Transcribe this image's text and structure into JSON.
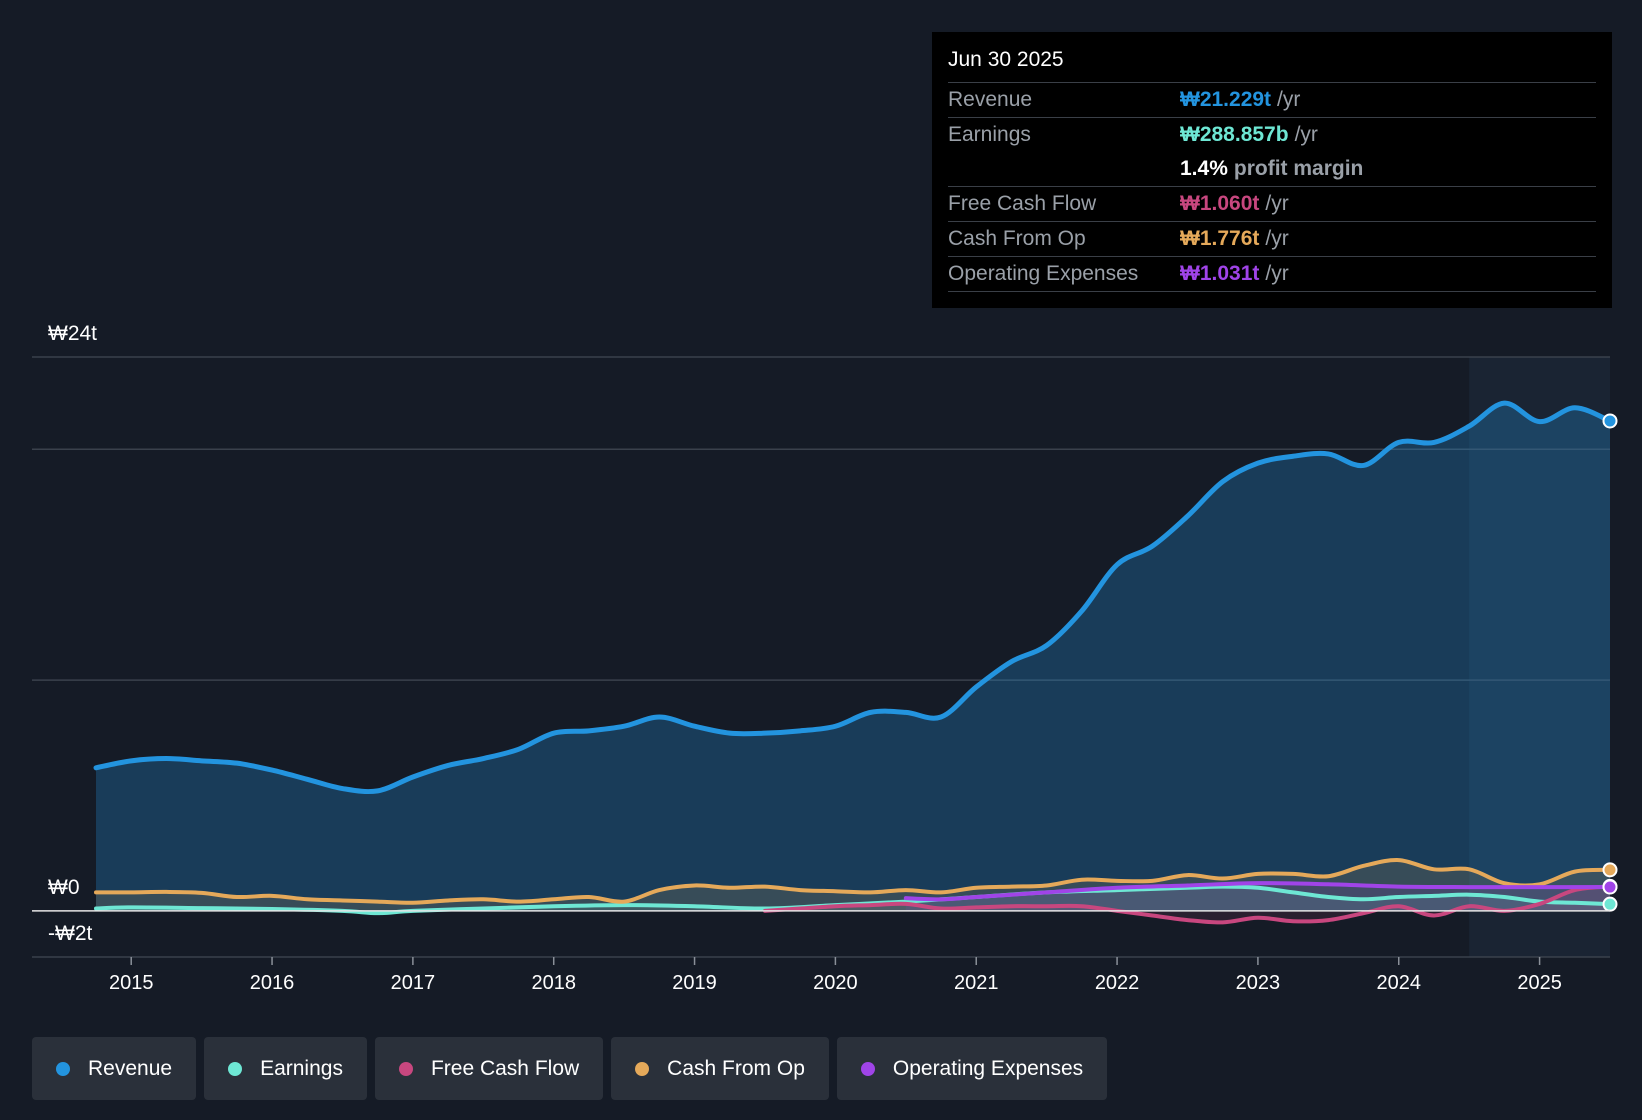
{
  "tooltip": {
    "date": "Jun 30 2025",
    "rows": [
      {
        "label": "Revenue",
        "value": "₩21.229t",
        "unit": "/yr",
        "color": "#2394df"
      },
      {
        "label": "Earnings",
        "value": "₩288.857b",
        "unit": "/yr",
        "color": "#6ee7d4"
      },
      {
        "label": "",
        "value": "1.4%",
        "unit": "profit margin",
        "color": "#ffffff"
      },
      {
        "label": "Free Cash Flow",
        "value": "₩1.060t",
        "unit": "/yr",
        "color": "#c8477f"
      },
      {
        "label": "Cash From Op",
        "value": "₩1.776t",
        "unit": "/yr",
        "color": "#e5a95a"
      },
      {
        "label": "Operating Expenses",
        "value": "₩1.031t",
        "unit": "/yr",
        "color": "#a044e8"
      }
    ]
  },
  "legend": [
    {
      "label": "Revenue",
      "color": "#2394df"
    },
    {
      "label": "Earnings",
      "color": "#6ee7d4"
    },
    {
      "label": "Free Cash Flow",
      "color": "#c8477f"
    },
    {
      "label": "Cash From Op",
      "color": "#e5a95a"
    },
    {
      "label": "Operating Expenses",
      "color": "#a044e8"
    }
  ],
  "chart_data": {
    "type": "line",
    "title": "",
    "ylabel_top": "₩24t",
    "ylabel_zero": "₩0",
    "ylabel_bottom": "-₩2t",
    "ylim": [
      -2,
      24
    ],
    "xlim": [
      2014.75,
      2025.5
    ],
    "gridlines": [
      24,
      20,
      10,
      0
    ],
    "xticks": [
      2015,
      2016,
      2017,
      2018,
      2019,
      2020,
      2021,
      2022,
      2023,
      2024,
      2025
    ],
    "xtick_labels": [
      "2015",
      "2016",
      "2017",
      "2018",
      "2019",
      "2020",
      "2021",
      "2022",
      "2023",
      "2024",
      "2025"
    ],
    "highlight_start": 2024.5,
    "series": [
      {
        "name": "Revenue",
        "color": "#2394df",
        "x": [
          2014.75,
          2015.0,
          2015.25,
          2015.5,
          2015.75,
          2016.0,
          2016.25,
          2016.5,
          2016.75,
          2017.0,
          2017.25,
          2017.5,
          2017.75,
          2018.0,
          2018.25,
          2018.5,
          2018.75,
          2019.0,
          2019.25,
          2019.5,
          2019.75,
          2020.0,
          2020.25,
          2020.5,
          2020.75,
          2021.0,
          2021.25,
          2021.5,
          2021.75,
          2022.0,
          2022.25,
          2022.5,
          2022.75,
          2023.0,
          2023.25,
          2023.5,
          2023.75,
          2024.0,
          2024.25,
          2024.5,
          2024.75,
          2025.0,
          2025.25,
          2025.5
        ],
        "values": [
          6.2,
          6.5,
          6.6,
          6.5,
          6.4,
          6.1,
          5.7,
          5.3,
          5.2,
          5.8,
          6.3,
          6.6,
          7.0,
          7.7,
          7.8,
          8.0,
          8.4,
          8.0,
          7.7,
          7.7,
          7.8,
          8.0,
          8.6,
          8.6,
          8.4,
          9.7,
          10.8,
          11.5,
          13.0,
          15.0,
          15.8,
          17.1,
          18.6,
          19.4,
          19.7,
          19.8,
          19.3,
          20.3,
          20.3,
          21.0,
          22.0,
          21.2,
          21.8,
          21.229
        ]
      },
      {
        "name": "Earnings",
        "color": "#6ee7d4",
        "x": [
          2014.75,
          2015.0,
          2015.5,
          2016.0,
          2016.5,
          2016.75,
          2017.0,
          2017.5,
          2018.0,
          2018.5,
          2019.0,
          2019.5,
          2020.0,
          2020.5,
          2021.0,
          2021.5,
          2022.0,
          2022.5,
          2022.75,
          2023.0,
          2023.25,
          2023.5,
          2023.75,
          2024.0,
          2024.25,
          2024.5,
          2024.75,
          2025.0,
          2025.25,
          2025.5
        ],
        "values": [
          0.1,
          0.15,
          0.12,
          0.08,
          0.0,
          -0.1,
          0.0,
          0.1,
          0.2,
          0.25,
          0.2,
          0.1,
          0.25,
          0.4,
          0.6,
          0.8,
          0.9,
          1.0,
          1.05,
          1.0,
          0.8,
          0.6,
          0.5,
          0.6,
          0.65,
          0.7,
          0.6,
          0.4,
          0.35,
          0.289
        ]
      },
      {
        "name": "Free Cash Flow",
        "color": "#c8477f",
        "x": [
          2019.5,
          2019.75,
          2020.0,
          2020.25,
          2020.5,
          2020.75,
          2021.0,
          2021.25,
          2021.5,
          2021.75,
          2022.0,
          2022.25,
          2022.5,
          2022.75,
          2023.0,
          2023.25,
          2023.5,
          2023.75,
          2024.0,
          2024.25,
          2024.5,
          2024.75,
          2025.0,
          2025.25,
          2025.5
        ],
        "values": [
          0.0,
          0.1,
          0.2,
          0.25,
          0.3,
          0.1,
          0.15,
          0.2,
          0.2,
          0.2,
          0.0,
          -0.2,
          -0.4,
          -0.5,
          -0.3,
          -0.45,
          -0.4,
          -0.1,
          0.2,
          -0.2,
          0.2,
          0.0,
          0.3,
          0.9,
          1.06
        ]
      },
      {
        "name": "Cash From Op",
        "color": "#e5a95a",
        "x": [
          2014.75,
          2015.0,
          2015.25,
          2015.5,
          2015.75,
          2016.0,
          2016.25,
          2016.5,
          2016.75,
          2017.0,
          2017.25,
          2017.5,
          2017.75,
          2018.0,
          2018.25,
          2018.5,
          2018.75,
          2019.0,
          2019.25,
          2019.5,
          2019.75,
          2020.0,
          2020.25,
          2020.5,
          2020.75,
          2021.0,
          2021.25,
          2021.5,
          2021.75,
          2022.0,
          2022.25,
          2022.5,
          2022.75,
          2023.0,
          2023.25,
          2023.5,
          2023.75,
          2024.0,
          2024.25,
          2024.5,
          2024.75,
          2025.0,
          2025.25,
          2025.5
        ],
        "values": [
          0.8,
          0.8,
          0.82,
          0.78,
          0.6,
          0.65,
          0.5,
          0.45,
          0.4,
          0.35,
          0.45,
          0.5,
          0.4,
          0.5,
          0.6,
          0.4,
          0.9,
          1.1,
          1.0,
          1.05,
          0.9,
          0.85,
          0.8,
          0.9,
          0.8,
          1.0,
          1.05,
          1.1,
          1.35,
          1.3,
          1.3,
          1.55,
          1.4,
          1.6,
          1.6,
          1.5,
          1.95,
          2.2,
          1.8,
          1.8,
          1.2,
          1.15,
          1.7,
          1.776
        ]
      },
      {
        "name": "Operating Expenses",
        "color": "#a044e8",
        "x": [
          2020.5,
          2020.75,
          2021.0,
          2021.5,
          2022.0,
          2022.5,
          2023.0,
          2023.5,
          2024.0,
          2024.5,
          2025.0,
          2025.5
        ],
        "values": [
          0.55,
          0.5,
          0.6,
          0.8,
          1.0,
          1.1,
          1.2,
          1.15,
          1.05,
          1.03,
          1.03,
          1.031
        ]
      }
    ]
  }
}
